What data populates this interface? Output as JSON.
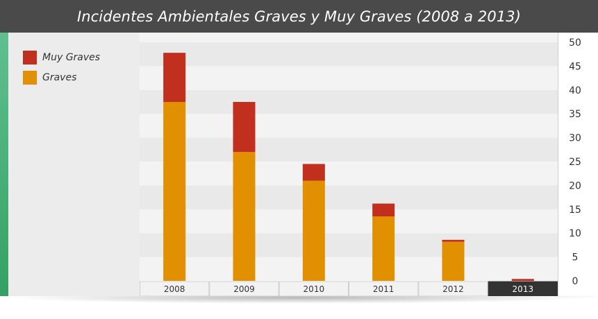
{
  "title": "Incidentes Ambientales Graves y Muy Graves (2008 a 2013)",
  "colors": {
    "title_bar": "#4a4a4a",
    "muy_graves": "#c1301f",
    "graves": "#e09000",
    "selected_tab": "#333333",
    "accent": "#4cb37a"
  },
  "legend": [
    {
      "label": "Muy Graves",
      "color": "#c1301f"
    },
    {
      "label": "Graves",
      "color": "#e09000"
    }
  ],
  "chart_data": {
    "type": "bar",
    "stacked": true,
    "title": "Incidentes Ambientales Graves y Muy Graves (2008 a 2013)",
    "categories": [
      "2008",
      "2009",
      "2010",
      "2011",
      "2012",
      "2013"
    ],
    "selected_category": "2013",
    "series": [
      {
        "name": "Graves",
        "color": "#e09000",
        "values": [
          37.5,
          27,
          21,
          13.5,
          8.2,
          0
        ]
      },
      {
        "name": "Muy Graves",
        "color": "#c1301f",
        "values": [
          10.3,
          10.5,
          3.5,
          2.7,
          0.4,
          0.4
        ]
      }
    ],
    "ylim": [
      0,
      50
    ],
    "yticks": [
      0,
      5,
      10,
      15,
      20,
      25,
      30,
      35,
      40,
      45,
      50
    ],
    "yaxis_position": "right",
    "legend_position": "top-left",
    "grid": "alternating horizontal bands"
  }
}
